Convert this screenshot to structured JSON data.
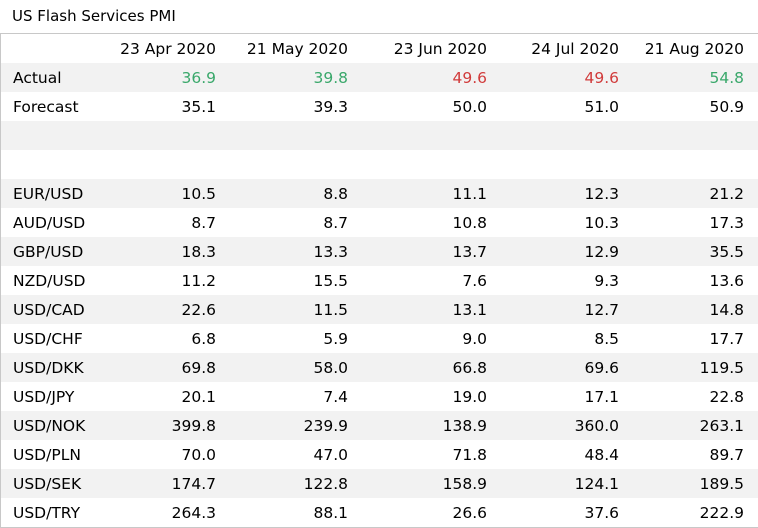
{
  "title": "US Flash Services PMI",
  "colors": {
    "good": "#3aa86b",
    "bad": "#d13b3b",
    "band": "#f2f2f2"
  },
  "columns": [
    "23 Apr 2020",
    "21 May 2020",
    "23 Jun 2020",
    "24 Jul 2020",
    "21 Aug 2020"
  ],
  "actual": {
    "label": "Actual",
    "values": [
      "36.9",
      "39.8",
      "49.6",
      "49.6",
      "54.8"
    ],
    "status": [
      "good",
      "good",
      "bad",
      "bad",
      "good"
    ]
  },
  "forecast": {
    "label": "Forecast",
    "values": [
      "35.1",
      "39.3",
      "50.0",
      "51.0",
      "50.9"
    ]
  },
  "pairs": [
    {
      "label": "EUR/USD",
      "values": [
        "10.5",
        "8.8",
        "11.1",
        "12.3",
        "21.2"
      ]
    },
    {
      "label": "AUD/USD",
      "values": [
        "8.7",
        "8.7",
        "10.8",
        "10.3",
        "17.3"
      ]
    },
    {
      "label": "GBP/USD",
      "values": [
        "18.3",
        "13.3",
        "13.7",
        "12.9",
        "35.5"
      ]
    },
    {
      "label": "NZD/USD",
      "values": [
        "11.2",
        "15.5",
        "7.6",
        "9.3",
        "13.6"
      ]
    },
    {
      "label": "USD/CAD",
      "values": [
        "22.6",
        "11.5",
        "13.1",
        "12.7",
        "14.8"
      ]
    },
    {
      "label": "USD/CHF",
      "values": [
        "6.8",
        "5.9",
        "9.0",
        "8.5",
        "17.7"
      ]
    },
    {
      "label": "USD/DKK",
      "values": [
        "69.8",
        "58.0",
        "66.8",
        "69.6",
        "119.5"
      ]
    },
    {
      "label": "USD/JPY",
      "values": [
        "20.1",
        "7.4",
        "19.0",
        "17.1",
        "22.8"
      ]
    },
    {
      "label": "USD/NOK",
      "values": [
        "399.8",
        "239.9",
        "138.9",
        "360.0",
        "263.1"
      ]
    },
    {
      "label": "USD/PLN",
      "values": [
        "70.0",
        "47.0",
        "71.8",
        "48.4",
        "89.7"
      ]
    },
    {
      "label": "USD/SEK",
      "values": [
        "174.7",
        "122.8",
        "158.9",
        "124.1",
        "189.5"
      ]
    },
    {
      "label": "USD/TRY",
      "values": [
        "264.3",
        "88.1",
        "26.6",
        "37.6",
        "222.9"
      ]
    }
  ]
}
